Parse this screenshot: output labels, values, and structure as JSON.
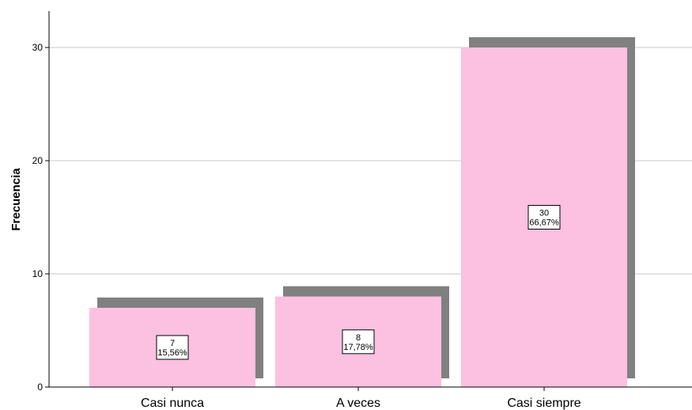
{
  "chart_data": {
    "type": "bar",
    "categories": [
      "Casi nunca",
      "A veces",
      "Casi siempre"
    ],
    "values": [
      7,
      8,
      30
    ],
    "percent_labels": [
      "15,56%",
      "17,78%",
      "66,67%"
    ],
    "title": "",
    "xlabel": "",
    "ylabel": "Frecuencia",
    "ylim": [
      0,
      32.5
    ],
    "yticks": [
      0,
      10,
      20,
      30
    ],
    "grid": true,
    "legend": "none",
    "colors": {
      "bar_fill": "#fcc0e0",
      "bar_shadow": "#808080",
      "grid": "#c8c8c8",
      "axis": "#000000"
    }
  }
}
